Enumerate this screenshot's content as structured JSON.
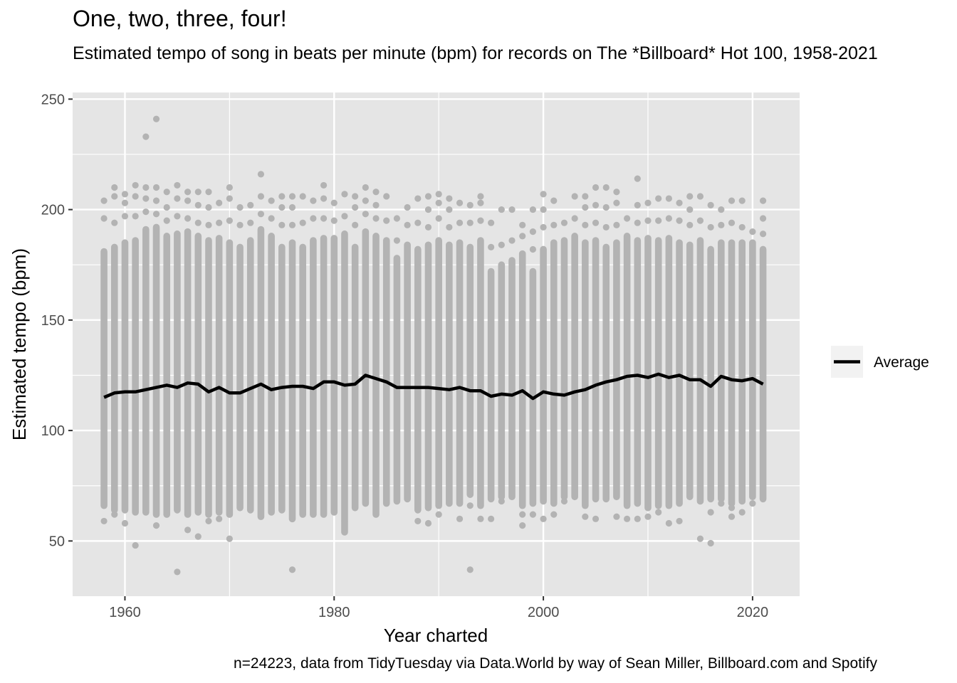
{
  "chart_data": {
    "type": "scatter",
    "title": "One, two, three, four!",
    "subtitle": "Estimated tempo of song in beats per minute (bpm) for records on The *Billboard* Hot 100, 1958-2021",
    "caption": "n=24223, data from TidyTuesday via Data.World by way of Sean Miller, Billboard.com and Spotify",
    "xlabel": "Year charted",
    "ylabel": "Estimated tempo (bpm)",
    "xlim": [
      1955,
      2024.5
    ],
    "ylim": [
      25,
      253
    ],
    "x_ticks": [
      1960,
      1980,
      2000,
      2020
    ],
    "y_ticks": [
      50,
      100,
      150,
      200,
      250
    ],
    "x_tick_labels": [
      "1960",
      "1980",
      "2000",
      "2020"
    ],
    "y_tick_labels": [
      "50",
      "100",
      "150",
      "200",
      "250"
    ],
    "grid": true,
    "legend_position": "right",
    "colors": {
      "points": "#b3b3b3",
      "average": "#000000",
      "panel": "#e5e5e5",
      "grid": "#ffffff"
    },
    "points_per_year": [
      {
        "year": 1958,
        "min": 66,
        "max": 181,
        "hi": [
          196,
          204
        ],
        "lo": [
          59
        ]
      },
      {
        "year": 1959,
        "min": 64,
        "max": 183,
        "hi": [
          194,
          206,
          210
        ],
        "lo": [
          62
        ]
      },
      {
        "year": 1960,
        "min": 64,
        "max": 185,
        "hi": [
          197,
          203,
          207
        ],
        "lo": [
          58
        ]
      },
      {
        "year": 1961,
        "min": 63,
        "max": 186,
        "hi": [
          197,
          206,
          211
        ],
        "lo": [
          48
        ]
      },
      {
        "year": 1962,
        "min": 63,
        "max": 191,
        "hi": [
          199,
          205,
          210,
          233
        ],
        "lo": []
      },
      {
        "year": 1963,
        "min": 62,
        "max": 192,
        "hi": [
          198,
          204,
          210,
          241
        ],
        "lo": [
          57
        ]
      },
      {
        "year": 1964,
        "min": 62,
        "max": 188,
        "hi": [
          195,
          201,
          208
        ],
        "lo": []
      },
      {
        "year": 1965,
        "min": 64,
        "max": 189,
        "hi": [
          197,
          205,
          211
        ],
        "lo": [
          36
        ]
      },
      {
        "year": 1966,
        "min": 62,
        "max": 190,
        "hi": [
          196,
          204,
          208
        ],
        "lo": [
          55
        ]
      },
      {
        "year": 1967,
        "min": 63,
        "max": 188,
        "hi": [
          194,
          202,
          208
        ],
        "lo": [
          52
        ]
      },
      {
        "year": 1968,
        "min": 62,
        "max": 186,
        "hi": [
          193,
          201,
          208
        ],
        "lo": [
          59
        ]
      },
      {
        "year": 1969,
        "min": 63,
        "max": 187,
        "hi": [
          194,
          203
        ],
        "lo": [
          60
        ]
      },
      {
        "year": 1970,
        "min": 62,
        "max": 185,
        "hi": [
          195,
          205,
          210
        ],
        "lo": [
          51
        ]
      },
      {
        "year": 1971,
        "min": 65,
        "max": 183,
        "hi": [
          193,
          201
        ],
        "lo": []
      },
      {
        "year": 1972,
        "min": 64,
        "max": 186,
        "hi": [
          194,
          202
        ],
        "lo": []
      },
      {
        "year": 1973,
        "min": 61,
        "max": 191,
        "hi": [
          198,
          206,
          216
        ],
        "lo": []
      },
      {
        "year": 1974,
        "min": 63,
        "max": 188,
        "hi": [
          196,
          204
        ],
        "lo": []
      },
      {
        "year": 1975,
        "min": 64,
        "max": 183,
        "hi": [
          193,
          201,
          206
        ],
        "lo": []
      },
      {
        "year": 1976,
        "min": 60,
        "max": 185,
        "hi": [
          193,
          201,
          206
        ],
        "lo": [
          37
        ]
      },
      {
        "year": 1977,
        "min": 62,
        "max": 183,
        "hi": [
          194,
          206
        ],
        "lo": []
      },
      {
        "year": 1978,
        "min": 62,
        "max": 186,
        "hi": [
          196,
          204
        ],
        "lo": []
      },
      {
        "year": 1979,
        "min": 62,
        "max": 187,
        "hi": [
          196,
          205,
          211
        ],
        "lo": []
      },
      {
        "year": 1980,
        "min": 63,
        "max": 187,
        "hi": [
          195,
          203
        ],
        "lo": []
      },
      {
        "year": 1981,
        "min": 54,
        "max": 189,
        "hi": [
          197,
          207
        ],
        "lo": [
          59
        ]
      },
      {
        "year": 1982,
        "min": 65,
        "max": 183,
        "hi": [
          193,
          201,
          206
        ],
        "lo": []
      },
      {
        "year": 1983,
        "min": 67,
        "max": 190,
        "hi": [
          198,
          204,
          210
        ],
        "lo": []
      },
      {
        "year": 1984,
        "min": 62,
        "max": 188,
        "hi": [
          196,
          202,
          208
        ],
        "lo": []
      },
      {
        "year": 1985,
        "min": 67,
        "max": 186,
        "hi": [
          195,
          206
        ],
        "lo": []
      },
      {
        "year": 1986,
        "min": 68,
        "max": 178,
        "hi": [
          186,
          196
        ],
        "lo": []
      },
      {
        "year": 1987,
        "min": 69,
        "max": 184,
        "hi": [
          193,
          201
        ],
        "lo": []
      },
      {
        "year": 1988,
        "min": 64,
        "max": 182,
        "hi": [
          194,
          205
        ],
        "lo": [
          59
        ]
      },
      {
        "year": 1989,
        "min": 65,
        "max": 184,
        "hi": [
          192,
          200,
          206
        ],
        "lo": [
          58
        ]
      },
      {
        "year": 1990,
        "min": 66,
        "max": 186,
        "hi": [
          196,
          203,
          207
        ],
        "lo": [
          62
        ]
      },
      {
        "year": 1991,
        "min": 67,
        "max": 184,
        "hi": [
          192,
          200,
          205
        ],
        "lo": []
      },
      {
        "year": 1992,
        "min": 67,
        "max": 185,
        "hi": [
          194,
          203
        ],
        "lo": [
          60
        ]
      },
      {
        "year": 1993,
        "min": 71,
        "max": 183,
        "hi": [
          194,
          202
        ],
        "lo": [
          37,
          66
        ]
      },
      {
        "year": 1994,
        "min": 66,
        "max": 186,
        "hi": [
          195,
          203,
          206
        ],
        "lo": [
          60
        ]
      },
      {
        "year": 1995,
        "min": 69,
        "max": 172,
        "hi": [
          183,
          194
        ],
        "lo": [
          60
        ]
      },
      {
        "year": 1996,
        "min": 70,
        "max": 175,
        "hi": [
          184,
          200
        ],
        "lo": [
          68
        ]
      },
      {
        "year": 1997,
        "min": 70,
        "max": 177,
        "hi": [
          186,
          200
        ],
        "lo": []
      },
      {
        "year": 1998,
        "min": 66,
        "max": 180,
        "hi": [
          188,
          193
        ],
        "lo": [
          57,
          62
        ]
      },
      {
        "year": 1999,
        "min": 67,
        "max": 172,
        "hi": [
          182,
          190,
          200
        ],
        "lo": [
          62
        ]
      },
      {
        "year": 2000,
        "min": 68,
        "max": 182,
        "hi": [
          192,
          200,
          207
        ],
        "lo": [
          60
        ]
      },
      {
        "year": 2001,
        "min": 67,
        "max": 185,
        "hi": [
          193,
          204
        ],
        "lo": [
          62
        ]
      },
      {
        "year": 2002,
        "min": 70,
        "max": 186,
        "hi": [
          194
        ],
        "lo": [
          68
        ]
      },
      {
        "year": 2003,
        "min": 70,
        "max": 188,
        "hi": [
          196,
          206
        ],
        "lo": []
      },
      {
        "year": 2004,
        "min": 66,
        "max": 185,
        "hi": [
          193,
          201,
          206
        ],
        "lo": [
          61
        ]
      },
      {
        "year": 2005,
        "min": 69,
        "max": 186,
        "hi": [
          194,
          202,
          210
        ],
        "lo": [
          60
        ]
      },
      {
        "year": 2006,
        "min": 69,
        "max": 183,
        "hi": [
          192,
          201,
          210
        ],
        "lo": []
      },
      {
        "year": 2007,
        "min": 70,
        "max": 185,
        "hi": [
          193,
          203,
          208
        ],
        "lo": [
          61
        ]
      },
      {
        "year": 2008,
        "min": 66,
        "max": 188,
        "hi": [
          196
        ],
        "lo": [
          60
        ]
      },
      {
        "year": 2009,
        "min": 67,
        "max": 186,
        "hi": [
          194,
          202,
          214
        ],
        "lo": [
          60
        ]
      },
      {
        "year": 2010,
        "min": 65,
        "max": 187,
        "hi": [
          195,
          203
        ],
        "lo": [
          61
        ]
      },
      {
        "year": 2011,
        "min": 66,
        "max": 186,
        "hi": [
          195,
          205
        ],
        "lo": [
          63
        ]
      },
      {
        "year": 2012,
        "min": 66,
        "max": 187,
        "hi": [
          196,
          205
        ],
        "lo": [
          58
        ]
      },
      {
        "year": 2013,
        "min": 67,
        "max": 185,
        "hi": [
          195,
          203
        ],
        "lo": [
          59
        ]
      },
      {
        "year": 2014,
        "min": 70,
        "max": 184,
        "hi": [
          193,
          200,
          206
        ],
        "lo": []
      },
      {
        "year": 2015,
        "min": 68,
        "max": 186,
        "hi": [
          195,
          206
        ],
        "lo": [
          51
        ]
      },
      {
        "year": 2016,
        "min": 69,
        "max": 182,
        "hi": [
          192,
          202
        ],
        "lo": [
          49,
          63
        ]
      },
      {
        "year": 2017,
        "min": 69,
        "max": 185,
        "hi": [
          193,
          200
        ],
        "lo": [
          67
        ]
      },
      {
        "year": 2018,
        "min": 67,
        "max": 185,
        "hi": [
          194,
          204
        ],
        "lo": [
          61,
          65
        ]
      },
      {
        "year": 2019,
        "min": 68,
        "max": 185,
        "hi": [
          192,
          204
        ],
        "lo": [
          63
        ]
      },
      {
        "year": 2020,
        "min": 70,
        "max": 185,
        "hi": [
          190
        ],
        "lo": [
          67
        ]
      },
      {
        "year": 2021,
        "min": 69,
        "max": 182,
        "hi": [
          189,
          196,
          204
        ],
        "lo": []
      }
    ],
    "series": [
      {
        "name": "Average",
        "x": [
          1958,
          1959,
          1960,
          1961,
          1962,
          1963,
          1964,
          1965,
          1966,
          1967,
          1968,
          1969,
          1970,
          1971,
          1972,
          1973,
          1974,
          1975,
          1976,
          1977,
          1978,
          1979,
          1980,
          1981,
          1982,
          1983,
          1984,
          1985,
          1986,
          1987,
          1988,
          1989,
          1990,
          1991,
          1992,
          1993,
          1994,
          1995,
          1996,
          1997,
          1998,
          1999,
          2000,
          2001,
          2002,
          2003,
          2004,
          2005,
          2006,
          2007,
          2008,
          2009,
          2010,
          2011,
          2012,
          2013,
          2014,
          2015,
          2016,
          2017,
          2018,
          2019,
          2020,
          2021
        ],
        "y": [
          115,
          117,
          117.5,
          117.5,
          118.5,
          119.5,
          120.5,
          119.5,
          121.5,
          121,
          117.5,
          119.5,
          117,
          117,
          119,
          121,
          118.5,
          119.5,
          120,
          120,
          119,
          122,
          122,
          120.5,
          121,
          125,
          123.5,
          122,
          119.5,
          119.5,
          119.5,
          119.5,
          119,
          118.5,
          119.5,
          118,
          118,
          115.5,
          116.5,
          116,
          118,
          114.5,
          117.5,
          116.5,
          116,
          117.5,
          118.5,
          120.5,
          122,
          123,
          124.5,
          125,
          124,
          125.5,
          124,
          125,
          123,
          123,
          120,
          124.5,
          123,
          122.5,
          123.5,
          121
        ]
      }
    ]
  }
}
